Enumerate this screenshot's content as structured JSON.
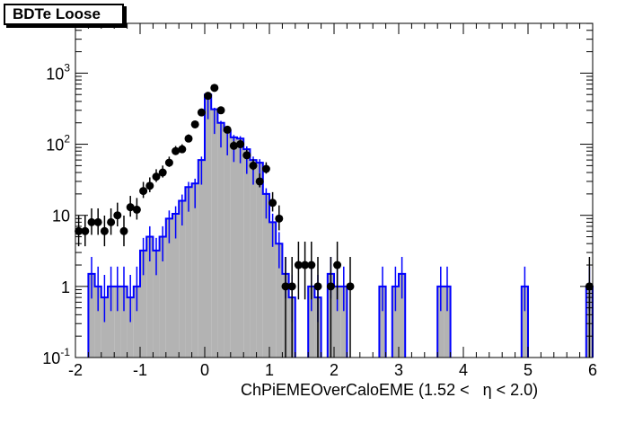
{
  "tag_label": "BDTe Loose",
  "chart_data": {
    "type": "histogram",
    "xlabel": "ChPiEMEOverCaloEME (1.52 <   η < 2.0)",
    "ylabel": "",
    "xlim": [
      -2,
      6
    ],
    "ylim": [
      0.1,
      5000
    ],
    "y_scale": "log",
    "x_ticks": [
      "-2",
      "-1",
      "0",
      "1",
      "2",
      "3",
      "4",
      "5",
      "6"
    ],
    "y_ticks": [
      {
        "value": 0.1,
        "base": "10",
        "exp": "-1"
      },
      {
        "value": 1,
        "base": "1",
        "exp": ""
      },
      {
        "value": 10,
        "base": "10",
        "exp": ""
      },
      {
        "value": 100,
        "base": "10",
        "exp": "2"
      },
      {
        "value": 1000,
        "base": "10",
        "exp": "3"
      }
    ],
    "colors": {
      "histogram_fill": "#b3b3b3",
      "histogram_line": "#0000ff",
      "points": "#000000"
    },
    "histogram": {
      "bin_width": 0.1,
      "bins": [
        {
          "x": -1.75,
          "y": 1.5
        },
        {
          "x": -1.65,
          "y": 1.0
        },
        {
          "x": -1.55,
          "y": 0.7
        },
        {
          "x": -1.45,
          "y": 1.0
        },
        {
          "x": -1.35,
          "y": 1.0
        },
        {
          "x": -1.25,
          "y": 1.0
        },
        {
          "x": -1.15,
          "y": 0.7
        },
        {
          "x": -1.05,
          "y": 1.0
        },
        {
          "x": -0.95,
          "y": 3.2
        },
        {
          "x": -0.85,
          "y": 5.0
        },
        {
          "x": -0.75,
          "y": 3.2
        },
        {
          "x": -0.65,
          "y": 5.0
        },
        {
          "x": -0.55,
          "y": 9.0
        },
        {
          "x": -0.45,
          "y": 10.5
        },
        {
          "x": -0.35,
          "y": 16.0
        },
        {
          "x": -0.25,
          "y": 25.0
        },
        {
          "x": -0.15,
          "y": 28.0
        },
        {
          "x": -0.05,
          "y": 60.0
        },
        {
          "x": 0.05,
          "y": 500.0
        },
        {
          "x": 0.15,
          "y": 310.0
        },
        {
          "x": 0.25,
          "y": 200.0
        },
        {
          "x": 0.35,
          "y": 155.0
        },
        {
          "x": 0.45,
          "y": 125.0
        },
        {
          "x": 0.55,
          "y": 120.0
        },
        {
          "x": 0.65,
          "y": 85.0
        },
        {
          "x": 0.75,
          "y": 60.0
        },
        {
          "x": 0.85,
          "y": 55.0
        },
        {
          "x": 0.95,
          "y": 20.0
        },
        {
          "x": 1.05,
          "y": 8.0
        },
        {
          "x": 1.15,
          "y": 4.0
        },
        {
          "x": 1.25,
          "y": 1.5
        },
        {
          "x": 1.35,
          "y": 0.7
        },
        {
          "x": 1.65,
          "y": 1.0
        },
        {
          "x": 1.75,
          "y": 0.7
        },
        {
          "x": 1.95,
          "y": 1.5
        },
        {
          "x": 2.05,
          "y": 1.0
        },
        {
          "x": 2.15,
          "y": 1.0
        },
        {
          "x": 2.75,
          "y": 1.0
        },
        {
          "x": 2.95,
          "y": 1.0
        },
        {
          "x": 3.05,
          "y": 1.5
        },
        {
          "x": 3.65,
          "y": 1.0
        },
        {
          "x": 3.75,
          "y": 1.0
        },
        {
          "x": 4.95,
          "y": 1.0
        },
        {
          "x": 5.95,
          "y": 1.0
        }
      ]
    },
    "points": [
      {
        "x": -1.95,
        "y": 6
      },
      {
        "x": -1.85,
        "y": 6
      },
      {
        "x": -1.75,
        "y": 8
      },
      {
        "x": -1.65,
        "y": 8
      },
      {
        "x": -1.55,
        "y": 6
      },
      {
        "x": -1.45,
        "y": 8
      },
      {
        "x": -1.35,
        "y": 10
      },
      {
        "x": -1.25,
        "y": 6
      },
      {
        "x": -1.15,
        "y": 13
      },
      {
        "x": -1.05,
        "y": 12
      },
      {
        "x": -0.95,
        "y": 22
      },
      {
        "x": -0.85,
        "y": 26
      },
      {
        "x": -0.75,
        "y": 35
      },
      {
        "x": -0.65,
        "y": 40
      },
      {
        "x": -0.55,
        "y": 55
      },
      {
        "x": -0.45,
        "y": 80
      },
      {
        "x": -0.35,
        "y": 85
      },
      {
        "x": -0.25,
        "y": 120
      },
      {
        "x": -0.15,
        "y": 190
      },
      {
        "x": -0.05,
        "y": 280
      },
      {
        "x": 0.05,
        "y": 480
      },
      {
        "x": 0.15,
        "y": 620
      },
      {
        "x": 0.25,
        "y": 300
      },
      {
        "x": 0.35,
        "y": 160
      },
      {
        "x": 0.45,
        "y": 95
      },
      {
        "x": 0.55,
        "y": 100
      },
      {
        "x": 0.65,
        "y": 70
      },
      {
        "x": 0.75,
        "y": 50
      },
      {
        "x": 0.85,
        "y": 30
      },
      {
        "x": 0.95,
        "y": 45
      },
      {
        "x": 1.05,
        "y": 15
      },
      {
        "x": 1.15,
        "y": 9
      },
      {
        "x": 1.25,
        "y": 1
      },
      {
        "x": 1.35,
        "y": 1
      },
      {
        "x": 1.45,
        "y": 2
      },
      {
        "x": 1.55,
        "y": 2
      },
      {
        "x": 1.65,
        "y": 2
      },
      {
        "x": 1.75,
        "y": 1
      },
      {
        "x": 1.95,
        "y": 1
      },
      {
        "x": 2.05,
        "y": 2
      },
      {
        "x": 2.25,
        "y": 1
      },
      {
        "x": 5.95,
        "y": 1
      }
    ]
  }
}
